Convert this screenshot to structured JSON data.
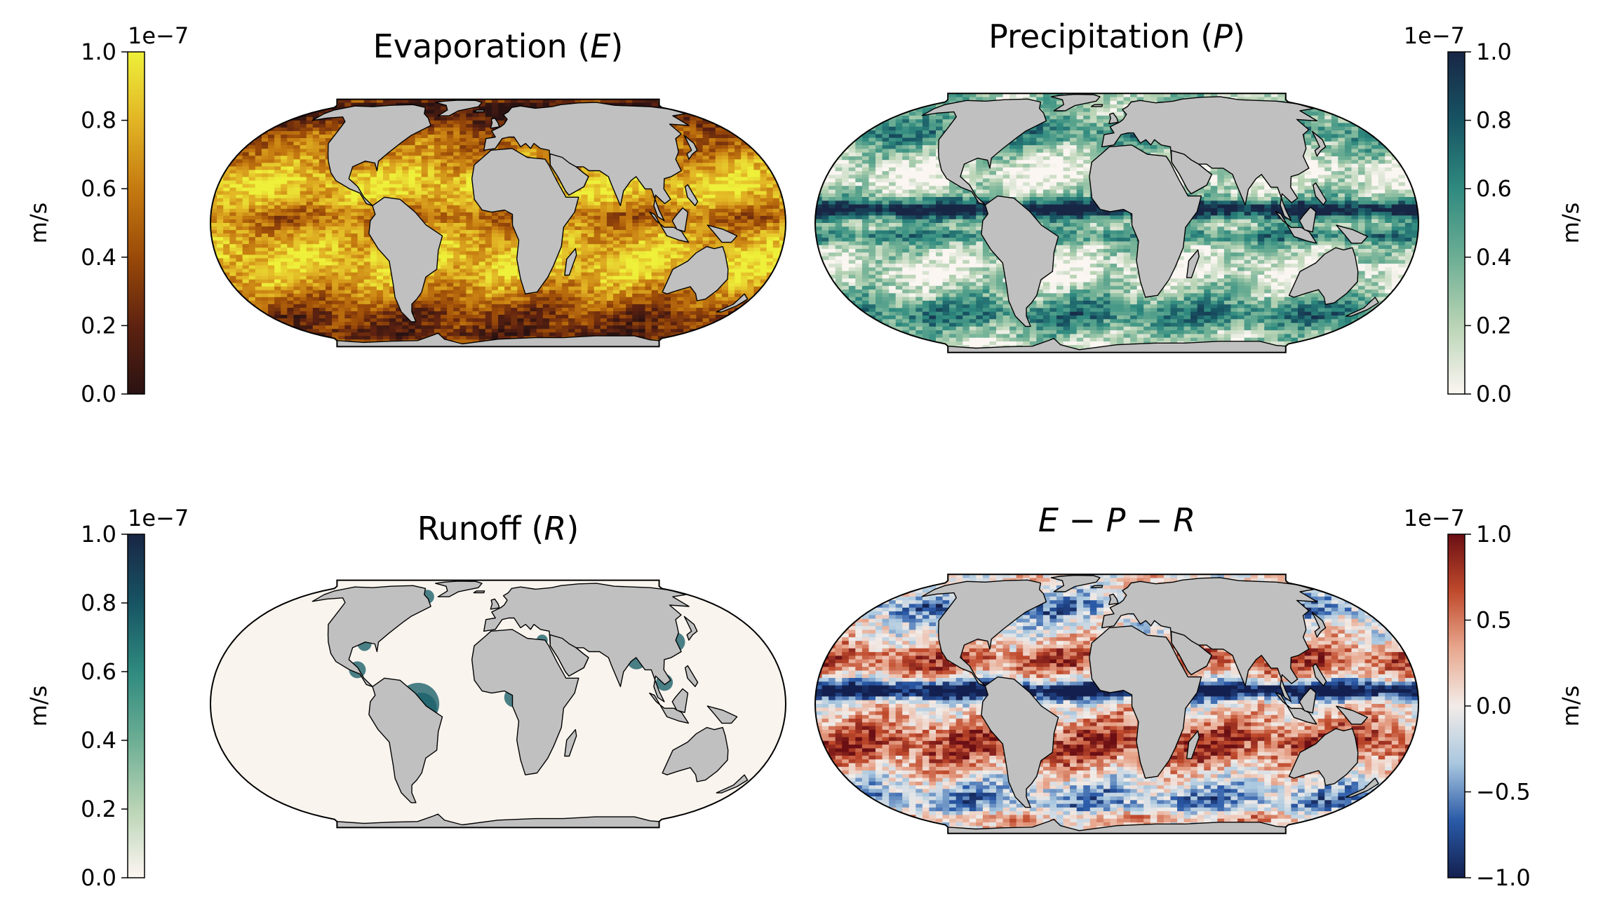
{
  "chart_data": [
    {
      "type": "heatmap",
      "title": "Evaporation (E)",
      "title_parts": {
        "pre": "Evaporation (",
        "var": "E",
        "post": ")"
      },
      "projection": "Robinson",
      "colorbar": {
        "side": "left",
        "label": "m/s",
        "exponent": "1e−7",
        "range": [
          0.0,
          1.0
        ],
        "ticks": [
          0.0,
          0.2,
          0.4,
          0.6,
          0.8,
          1.0
        ],
        "tick_labels": [
          "0.0",
          "0.2",
          "0.4",
          "0.6",
          "0.8",
          "1.0"
        ],
        "colors": [
          "#2a1212",
          "#5e2210",
          "#9a4a08",
          "#c57a10",
          "#e2b525",
          "#eef03a"
        ]
      },
      "field": {
        "base": 0.55,
        "bands": [
          {
            "lat": 70,
            "width": 14,
            "amp": -0.45
          },
          {
            "lat": 55,
            "width": 8,
            "amp": -0.2
          },
          {
            "lat": 18,
            "width": 12,
            "amp": 0.35
          },
          {
            "lat": -18,
            "width": 14,
            "amp": 0.35
          },
          {
            "lat": 3,
            "width": 4,
            "amp": -0.15
          },
          {
            "lat": -50,
            "width": 10,
            "amp": -0.25
          },
          {
            "lat": -65,
            "width": 8,
            "amp": -0.35
          }
        ],
        "noise": 0.18
      }
    },
    {
      "type": "heatmap",
      "title": "Precipitation (P)",
      "title_parts": {
        "pre": "Precipitation (",
        "var": "P",
        "post": ")"
      },
      "projection": "Robinson",
      "colorbar": {
        "side": "right",
        "label": "m/s",
        "exponent": "1e−7",
        "range": [
          0.0,
          1.0
        ],
        "ticks": [
          0.0,
          0.2,
          0.4,
          0.6,
          0.8,
          1.0
        ],
        "tick_labels": [
          "0.0",
          "0.2",
          "0.4",
          "0.6",
          "0.8",
          "1.0"
        ],
        "colors": [
          "#fbf6f2",
          "#b9d4b5",
          "#6cae94",
          "#2f8a7f",
          "#175463",
          "#182645"
        ]
      },
      "field": {
        "base": 0.28,
        "bands": [
          {
            "lat": 6,
            "width": 4,
            "amp": 0.8
          },
          {
            "lat": -6,
            "width": 3,
            "amp": 0.35
          },
          {
            "lat": 45,
            "width": 8,
            "amp": 0.3
          },
          {
            "lat": -45,
            "width": 9,
            "amp": 0.35
          },
          {
            "lat": 22,
            "width": 8,
            "amp": -0.25
          },
          {
            "lat": -22,
            "width": 8,
            "amp": -0.22
          },
          {
            "lat": -72,
            "width": 6,
            "amp": -0.2
          }
        ],
        "noise": 0.22
      }
    },
    {
      "type": "heatmap",
      "title": "Runoff (R)",
      "title_parts": {
        "pre": "Runoff (",
        "var": "R",
        "post": ")"
      },
      "projection": "Robinson",
      "colorbar": {
        "side": "left",
        "label": "m/s",
        "exponent": "1e−7",
        "range": [
          0.0,
          1.0
        ],
        "ticks": [
          0.0,
          0.2,
          0.4,
          0.6,
          0.8,
          1.0
        ],
        "tick_labels": [
          "0.0",
          "0.2",
          "0.4",
          "0.6",
          "0.8",
          "1.0"
        ],
        "colors": [
          "#fdf6f1",
          "#b9d4b5",
          "#6cae94",
          "#2f8a7f",
          "#175463",
          "#182645"
        ]
      },
      "field": {
        "base": 0.01,
        "bands": [],
        "noise": 0.0
      }
    },
    {
      "type": "heatmap",
      "title": "E − P − R",
      "title_parts": {
        "pre": "",
        "var": "E − P − R",
        "post": ""
      },
      "projection": "Robinson",
      "colorbar": {
        "side": "right",
        "label": "m/s",
        "exponent": "1e−7",
        "range": [
          -1.0,
          1.0
        ],
        "ticks": [
          -1.0,
          -0.5,
          0.0,
          0.5,
          1.0
        ],
        "tick_labels": [
          "−1.0",
          "−0.5",
          "0.0",
          "0.5",
          "1.0"
        ],
        "colors": [
          "#13204f",
          "#2a5aa8",
          "#a9c7df",
          "#f2ece8",
          "#e8a88f",
          "#c04a2c",
          "#6b0f14"
        ]
      },
      "field": {
        "base": 0.0,
        "bands": [
          {
            "lat": 6,
            "width": 4,
            "amp": -1.2
          },
          {
            "lat": 20,
            "width": 8,
            "amp": 0.6
          },
          {
            "lat": -18,
            "width": 12,
            "amp": 0.7
          },
          {
            "lat": 48,
            "width": 8,
            "amp": -0.5
          },
          {
            "lat": -48,
            "width": 10,
            "amp": -0.45
          },
          {
            "lat": -62,
            "width": 6,
            "amp": 0.3
          }
        ],
        "noise": 0.35
      }
    }
  ]
}
